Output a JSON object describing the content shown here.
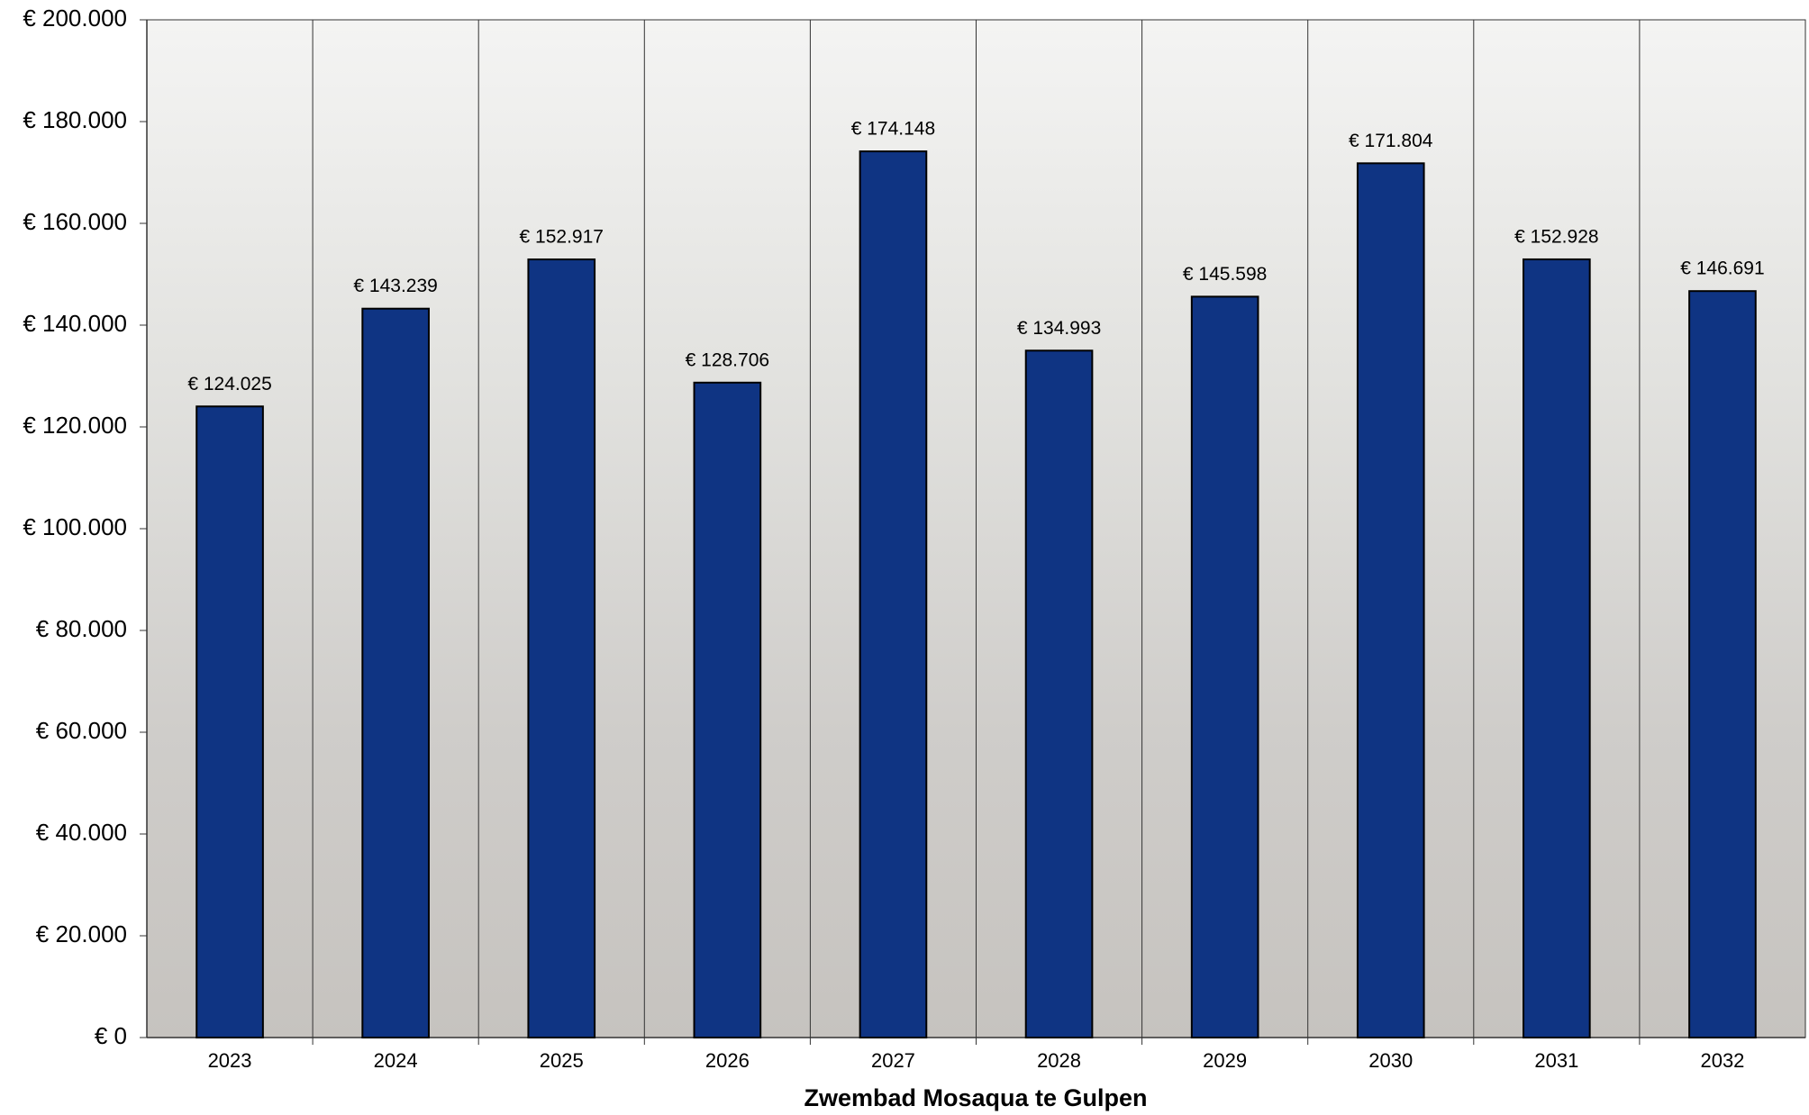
{
  "chart_data": {
    "type": "bar",
    "x_label": "Zwembad Mosaqua te Gulpen",
    "categories": [
      "2023",
      "2024",
      "2025",
      "2026",
      "2027",
      "2028",
      "2029",
      "2030",
      "2031",
      "2032"
    ],
    "values": [
      124025,
      143239,
      152917,
      128706,
      174148,
      134993,
      145598,
      171804,
      152928,
      146691
    ],
    "value_labels": [
      "€ 124.025",
      "€ 143.239",
      "€ 152.917",
      "€ 128.706",
      "€ 174.148",
      "€ 134.993",
      "€ 145.598",
      "€ 171.804",
      "€ 152.928",
      "€ 146.691"
    ],
    "color": "#0f3483",
    "ylim": [
      0,
      200000
    ],
    "yticks": [
      {
        "value": 0,
        "label": "€ 0"
      },
      {
        "value": 20000,
        "label": "€ 20.000"
      },
      {
        "value": 40000,
        "label": "€ 40.000"
      },
      {
        "value": 60000,
        "label": "€ 60.000"
      },
      {
        "value": 80000,
        "label": "€ 80.000"
      },
      {
        "value": 100000,
        "label": "€ 100.000"
      },
      {
        "value": 120000,
        "label": "€ 120.000"
      },
      {
        "value": 140000,
        "label": "€ 140.000"
      },
      {
        "value": 160000,
        "label": "€ 160.000"
      },
      {
        "value": 180000,
        "label": "€ 180.000"
      },
      {
        "value": 200000,
        "label": "€ 200.000"
      }
    ],
    "grid": false
  }
}
